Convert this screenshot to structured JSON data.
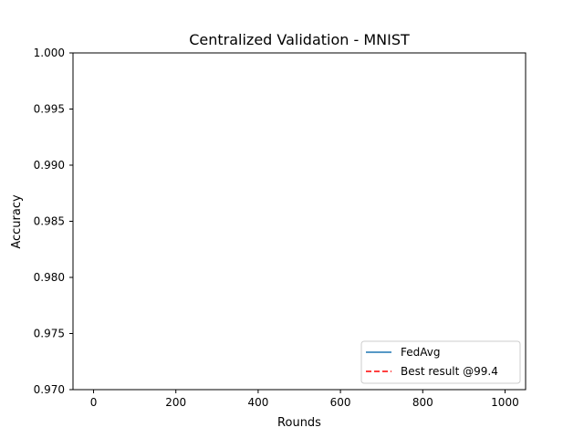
{
  "chart_data": {
    "type": "line",
    "title": "Centralized Validation - MNIST",
    "xlabel": "Rounds",
    "ylabel": "Accuracy",
    "xlim": [
      -50,
      1050
    ],
    "ylim": [
      0.97,
      1.0
    ],
    "x_ticks": [
      0,
      200,
      400,
      600,
      800,
      1000
    ],
    "x_tick_labels": [
      "0",
      "200",
      "400",
      "600",
      "800",
      "1000"
    ],
    "y_ticks": [
      0.97,
      0.975,
      0.98,
      0.985,
      0.99,
      0.995,
      1.0
    ],
    "y_tick_labels": [
      "0.970",
      "0.975",
      "0.980",
      "0.985",
      "0.990",
      "0.995",
      "1.000"
    ],
    "grid": false,
    "legend_position": "lower-right",
    "series": [
      {
        "name": "FedAvg",
        "color": "#1f77b4",
        "style": "solid",
        "x": [],
        "y": []
      },
      {
        "name": "Best result @99.4",
        "color": "#ff0000",
        "style": "dashed",
        "x": [],
        "y": []
      }
    ]
  }
}
